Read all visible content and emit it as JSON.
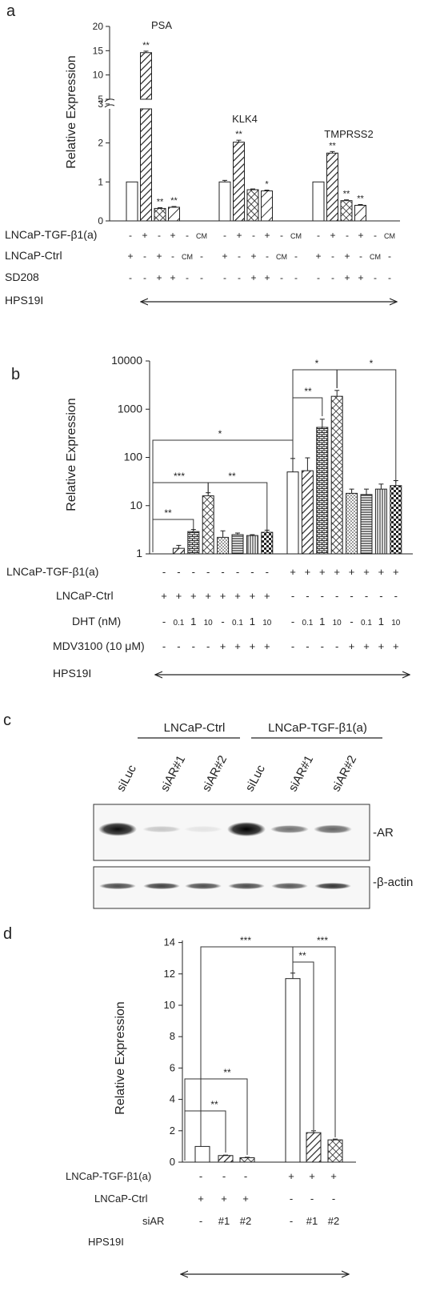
{
  "panels": {
    "a": {
      "letter": "a",
      "ylabel": "Relative Expression",
      "yticks_upper": [
        "20",
        "15",
        "10",
        "5"
      ],
      "yticks_lower": [
        "3",
        "2",
        "1",
        "0"
      ],
      "row_labels": [
        "LNCaP-TGF-β1(a)",
        "LNCaP-Ctrl",
        "SD208",
        "HPS19I"
      ],
      "rows": [
        [
          "-",
          "+",
          "-",
          "+",
          "-",
          "CM"
        ],
        [
          "+",
          "-",
          "+",
          "-",
          "CM",
          "-"
        ],
        [
          "-",
          "-",
          "+",
          "+",
          "-",
          "-"
        ]
      ]
    },
    "b": {
      "letter": "b",
      "ylabel": "Relative Expression",
      "yticks": [
        "1",
        "10",
        "100",
        "1000",
        "10000"
      ],
      "row_labels": [
        "LNCaP-TGF-β1(a)",
        "LNCaP-Ctrl",
        "DHT (nM)",
        "MDV3100 (10 μM)",
        "HPS19I"
      ],
      "rows": [
        [
          "-",
          "-",
          "-",
          "-",
          "-",
          "-",
          "-",
          "-",
          "+",
          "+",
          "+",
          "+",
          "+",
          "+",
          "+",
          "+"
        ],
        [
          "+",
          "+",
          "+",
          "+",
          "+",
          "+",
          "+",
          "+",
          "-",
          "-",
          "-",
          "-",
          "-",
          "-",
          "-",
          "-"
        ],
        [
          "-",
          "0.1",
          "1",
          "10",
          "-",
          "0.1",
          "1",
          "10",
          "-",
          "0.1",
          "1",
          "10",
          "-",
          "0.1",
          "1",
          "10"
        ],
        [
          "-",
          "-",
          "-",
          "-",
          "+",
          "+",
          "+",
          "+",
          "-",
          "-",
          "-",
          "-",
          "+",
          "+",
          "+",
          "+"
        ]
      ]
    },
    "c": {
      "letter": "c",
      "group_labels": [
        "LNCaP-Ctrl",
        "LNCaP-TGF-β1(a)"
      ],
      "lanes": [
        "siLuc",
        "siAR#1",
        "siAR#2",
        "siLuc",
        "siAR#1",
        "siAR#2"
      ],
      "bands": [
        "-AR",
        "-β-actin"
      ],
      "ar_intensity": [
        0.95,
        0.2,
        0.08,
        1.0,
        0.55,
        0.6
      ],
      "actin_intensity": [
        0.7,
        0.75,
        0.7,
        0.7,
        0.65,
        0.8
      ]
    },
    "d": {
      "letter": "d",
      "ylabel": "Relative Expression",
      "yticks": [
        "0",
        "2",
        "4",
        "6",
        "8",
        "10",
        "12",
        "14"
      ],
      "row_labels": [
        "LNCaP-TGF-β1(a)",
        "LNCaP-Ctrl",
        "siAR",
        "HPS19I"
      ],
      "rows": [
        [
          "-",
          "-",
          "-",
          "+",
          "+",
          "+"
        ],
        [
          "+",
          "+",
          "+",
          "-",
          "-",
          "-"
        ],
        [
          "-",
          "#1",
          "#2",
          "-",
          "#1",
          "#2"
        ]
      ]
    }
  },
  "chart_data": [
    {
      "type": "bar",
      "panel": "a",
      "ylabel": "Relative Expression",
      "ylim_lower": [
        0,
        3
      ],
      "ylim_upper": [
        5,
        20
      ],
      "groups": [
        "PSA",
        "KLK4",
        "TMPRSS2"
      ],
      "bar_labels": [
        "LNCaP-Ctrl",
        "LNCaP-TGF-β1(a)",
        "LNCaP-Ctrl + SD208",
        "LNCaP-TGF-β1(a) + SD208"
      ],
      "series": [
        {
          "values": [
            1.0,
            14.6,
            0.32,
            0.35
          ],
          "errors": [
            0,
            0.3,
            0.02,
            0.02
          ],
          "stars": [
            "",
            "**",
            "**",
            "**"
          ]
        },
        {
          "values": [
            1.0,
            2.02,
            0.8,
            0.77
          ],
          "errors": [
            0.04,
            0.05,
            0.02,
            0.02
          ],
          "stars": [
            "",
            "**",
            "",
            "*"
          ]
        },
        {
          "values": [
            1.0,
            1.74,
            0.52,
            0.4
          ],
          "errors": [
            0,
            0.04,
            0.02,
            0.02
          ],
          "stars": [
            "",
            "**",
            "**",
            "**"
          ]
        }
      ]
    },
    {
      "type": "bar",
      "panel": "b",
      "ylabel": "Relative Expression",
      "yscale": "log",
      "ylim": [
        1,
        10000
      ],
      "values": [
        1,
        1.3,
        2.9,
        16,
        2.2,
        2.5,
        2.4,
        2.8,
        50,
        53,
        420,
        1850,
        18,
        17,
        22,
        26
      ],
      "errors": [
        0,
        0.2,
        0.3,
        2.5,
        0.8,
        0.2,
        0.1,
        0.3,
        45,
        45,
        200,
        600,
        4,
        5,
        6,
        7
      ],
      "annotations": [
        "**",
        "***",
        "**",
        "*",
        "**",
        "*",
        "*"
      ]
    },
    {
      "type": "bar",
      "panel": "d",
      "ylabel": "Relative Expression",
      "ylim": [
        0,
        14
      ],
      "values": [
        1.0,
        0.42,
        0.28,
        11.7,
        1.88,
        1.42
      ],
      "errors": [
        0,
        0.03,
        0.03,
        0.35,
        0.12,
        0.05
      ],
      "annotations": [
        "**",
        "**",
        "***",
        "**",
        "***"
      ]
    }
  ]
}
